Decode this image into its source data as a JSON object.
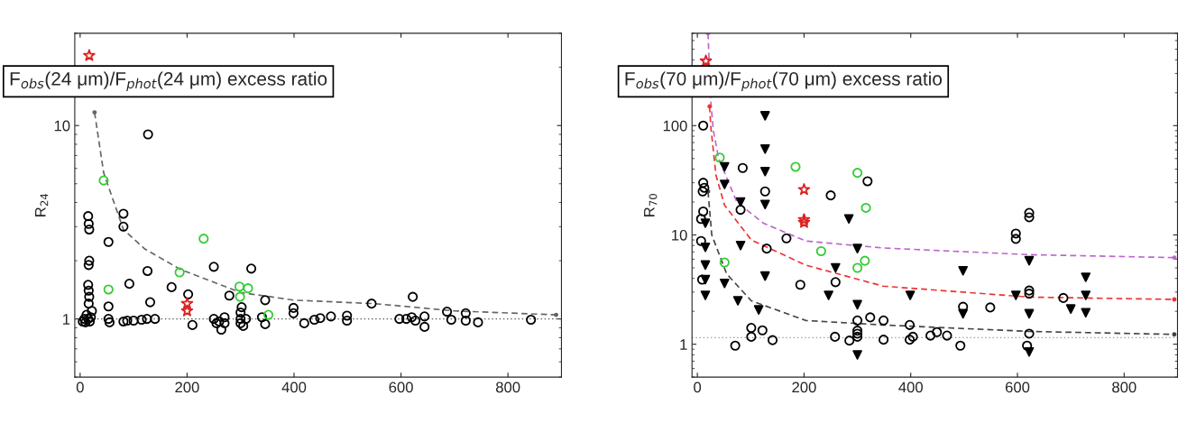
{
  "chart_data": [
    {
      "type": "scatter",
      "ylabel": "R$_{24}$",
      "log": "y",
      "xlim": [
        -10,
        900
      ],
      "ylim": [
        0.5,
        30
      ],
      "xticks": [
        0,
        200,
        400,
        600,
        800
      ],
      "yticks": [
        1,
        10
      ],
      "grid": false,
      "annotations": [
        "F$_{obs}$(24 μm)/F$_{phot}$(24 μm) excess ratio"
      ],
      "ref_lines": [
        {
          "axis": "y",
          "value": 1,
          "color": "#555555",
          "line_style": "dotted"
        }
      ],
      "series": [
        {
          "type": "line",
          "color": "#666666",
          "line_style": "dashed",
          "marker": "none",
          "x": [
            27,
            44,
            81,
            121,
            188,
            300,
            400,
            550,
            700,
            890
          ],
          "values": [
            11.7,
            5.7,
            2.9,
            2.3,
            1.8,
            1.37,
            1.25,
            1.2,
            1.1,
            1.05
          ]
        },
        {
          "type": "scatter",
          "color": "#000000",
          "marker": "circle",
          "x": [
            15,
            16,
            17,
            17,
            16,
            127,
            81,
            81,
            53,
            250,
            320,
            92,
            171,
            126,
            202,
            279,
            346,
            346,
            210,
            264,
            255,
            270,
            131,
            15,
            16,
            17,
            16,
            53,
            5,
            8,
            10,
            12,
            15,
            18,
            20,
            22,
            53,
            55,
            81,
            88,
            100,
            115,
            125,
            140,
            250,
            260,
            270,
            300,
            300,
            300,
            302,
            305,
            310,
            340,
            399,
            399,
            419,
            438,
            449,
            469,
            499,
            499,
            545,
            597,
            610,
            620,
            627,
            622,
            644,
            644,
            686,
            694,
            721,
            721,
            744,
            843
          ],
          "values": [
            3.4,
            3.1,
            2.9,
            2.0,
            1.9,
            9,
            3.5,
            3.0,
            2.5,
            1.86,
            1.82,
            1.52,
            1.46,
            1.77,
            1.34,
            1.32,
            1.25,
            0.94,
            0.93,
            0.88,
            0.95,
            0.95,
            1.22,
            1.5,
            1.4,
            1.3,
            1.2,
            1.16,
            0.97,
            1.0,
            0.96,
            1.05,
            1.0,
            0.97,
            1.02,
            1.1,
            1.0,
            0.96,
            0.97,
            0.98,
            0.98,
            0.99,
            1.0,
            1.0,
            1.0,
            0.97,
            1.02,
            0.95,
            1.0,
            1.08,
            1.15,
            0.92,
            1.0,
            1.02,
            1.07,
            1.14,
            0.95,
            0.99,
            1.01,
            1.03,
            0.98,
            1.04,
            1.2,
            1.0,
            1.0,
            1.02,
            0.98,
            1.3,
            1.03,
            0.91,
            1.09,
            0.99,
            1.07,
            0.98,
            0.96,
            0.99
          ]
        },
        {
          "type": "scatter",
          "color": "#33cc33",
          "marker": "circle",
          "x": [
            44,
            231,
            186,
            53,
            298,
            314,
            299,
            352
          ],
          "values": [
            5.2,
            2.6,
            1.74,
            1.42,
            1.47,
            1.44,
            1.3,
            1.05
          ]
        },
        {
          "type": "scatter",
          "color": "#dd2222",
          "marker": "star",
          "x": [
            17,
            200,
            200
          ],
          "values": [
            23,
            1.1,
            1.2
          ]
        }
      ]
    },
    {
      "type": "scatter",
      "ylabel": "R$_{70}$",
      "log": "y",
      "xlim": [
        -10,
        900
      ],
      "ylim": [
        0.5,
        700
      ],
      "xticks": [
        0,
        200,
        400,
        600,
        800
      ],
      "yticks": [
        1,
        10,
        100
      ],
      "grid": false,
      "annotations": [
        "F$_{obs}$(70 μm)/F$_{phot}$(70 μm) excess ratio"
      ],
      "ref_lines": [
        {
          "axis": "y",
          "value": 1.15,
          "color": "#999999",
          "line_style": "dotted"
        }
      ],
      "series": [
        {
          "type": "line",
          "color": "#bb66cc",
          "line_style": "dashed",
          "marker": "none",
          "x": [
            20,
            25,
            30,
            40,
            74,
            124,
            203,
            348,
            622,
            894
          ],
          "values": [
            700,
            170,
            90,
            50,
            20,
            12.8,
            8.8,
            7.6,
            6.6,
            6.2
          ]
        },
        {
          "type": "line",
          "color": "#ee3333",
          "line_style": "dashed",
          "marker": "none",
          "x": [
            23,
            25,
            35,
            51,
            101,
            203,
            348,
            622,
            894
          ],
          "values": [
            150,
            100,
            35,
            18.7,
            9,
            5.3,
            3.4,
            2.7,
            2.57
          ]
        },
        {
          "type": "line",
          "color": "#444444",
          "line_style": "dashed",
          "marker": "none",
          "x": [
            20,
            27,
            55,
            101,
            203,
            348,
            622,
            894
          ],
          "values": [
            25,
            10,
            4.4,
            2.5,
            1.65,
            1.5,
            1.31,
            1.23
          ]
        },
        {
          "type": "scatter",
          "color": "#000000",
          "marker": "circle",
          "x": [
            11,
            11,
            13,
            10,
            85,
            127,
            81,
            250,
            319,
            11,
            7,
            7,
            167,
            130,
            9,
            259,
            193,
            324,
            349,
            300,
            300,
            300,
            300,
            101,
            101,
            122,
            71,
            141,
            258,
            285,
            349,
            398,
            398,
            404,
            437,
            449,
            468,
            493,
            498,
            549,
            597,
            597,
            622,
            622,
            622,
            622,
            622,
            618,
            686
          ],
          "values": [
            100,
            30,
            27,
            25,
            41,
            25,
            17,
            23,
            31,
            16.4,
            14,
            8.8,
            9.3,
            7.5,
            3.9,
            3.7,
            3.5,
            1.76,
            1.65,
            1.65,
            1.33,
            1.25,
            1.17,
            1.41,
            1.17,
            1.34,
            0.97,
            1.09,
            1.17,
            1.08,
            1.1,
            1.5,
            1.1,
            1.17,
            1.2,
            1.29,
            1.2,
            0.97,
            2.2,
            2.17,
            10.3,
            9.2,
            15.9,
            14.5,
            3.1,
            2.9,
            1.25,
            0.97,
            2.65
          ]
        },
        {
          "type": "scatter",
          "color": "#33cc33",
          "marker": "circle",
          "x": [
            42,
            184,
            300,
            316,
            232,
            51,
            300,
            314
          ],
          "values": [
            51,
            42,
            37,
            17.7,
            7.1,
            5.6,
            5.0,
            5.8
          ]
        },
        {
          "type": "scatter",
          "color": "#dd2222",
          "marker": "star",
          "x": [
            16,
            200,
            200,
            200
          ],
          "values": [
            390,
            26,
            13.8,
            13
          ]
        },
        {
          "type": "scatter",
          "color": "#000000",
          "marker": "triangle",
          "x": [
            127,
            127,
            127,
            127,
            127,
            51,
            51,
            51,
            15,
            15,
            15,
            15,
            15,
            81,
            81,
            76,
            115,
            284,
            300,
            300,
            300,
            246,
            259,
            498,
            498,
            399,
            597,
            622,
            622,
            622,
            700,
            728,
            728,
            728
          ],
          "values": [
            123,
            61,
            38,
            19,
            4.2,
            42,
            29,
            3.6,
            12.8,
            7.7,
            5.3,
            3.9,
            2.8,
            20,
            8,
            2.5,
            2.06,
            14,
            7.5,
            2.3,
            0.8,
            2.8,
            5,
            4.7,
            1.9,
            2.8,
            2.8,
            5.8,
            1.9,
            0.85,
            2.1,
            4.1,
            2.8,
            1.94
          ]
        }
      ]
    }
  ]
}
